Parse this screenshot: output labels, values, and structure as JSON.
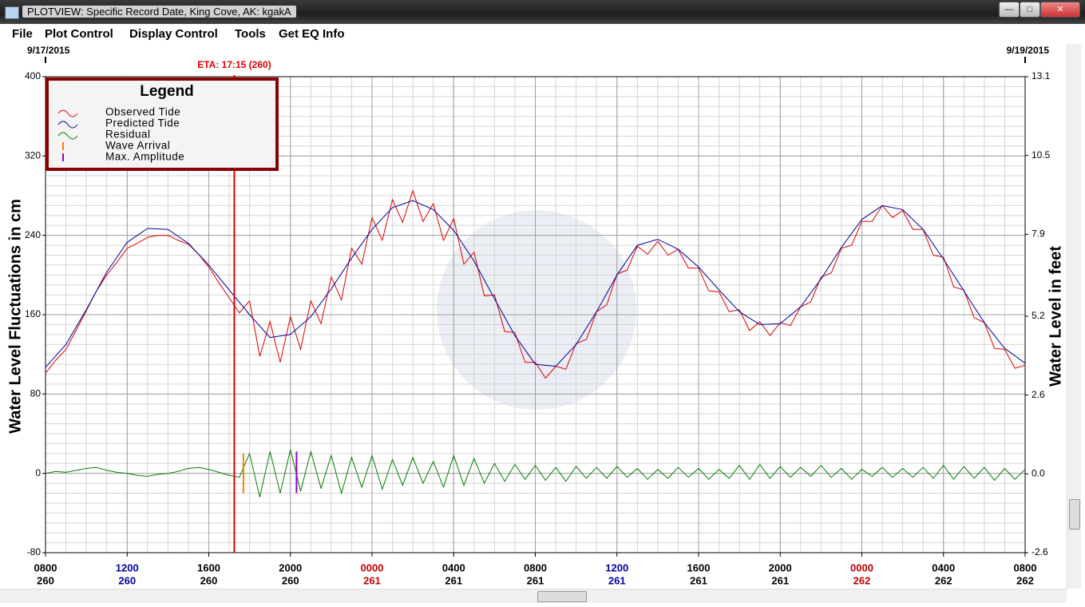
{
  "window": {
    "title": "PLOTVIEW: Specific Record Date, King Cove, AK: kgakA",
    "menu": [
      "File",
      "Plot Control",
      "Display Control",
      "Tools",
      "Get EQ Info"
    ]
  },
  "chart_data": {
    "type": "line",
    "y_label": "Water Level Fluctuations in cm",
    "y2_label": "Water Level in feet",
    "start_date": "9/17/2015",
    "end_date": "9/19/2015",
    "xlim": [
      0,
      48
    ],
    "xticks": [
      {
        "value": 0,
        "label": "0800",
        "day": "260",
        "color": "#000000"
      },
      {
        "value": 4,
        "label": "1200",
        "day": "260",
        "color": "#0000a0"
      },
      {
        "value": 8,
        "label": "1600",
        "day": "260",
        "color": "#000000"
      },
      {
        "value": 12,
        "label": "2000",
        "day": "260",
        "color": "#000000"
      },
      {
        "value": 16,
        "label": "0000",
        "day": "261",
        "color": "#c00000"
      },
      {
        "value": 20,
        "label": "0400",
        "day": "261",
        "color": "#000000"
      },
      {
        "value": 24,
        "label": "0800",
        "day": "261",
        "color": "#000000"
      },
      {
        "value": 28,
        "label": "1200",
        "day": "261",
        "color": "#0000a0"
      },
      {
        "value": 32,
        "label": "1600",
        "day": "261",
        "color": "#000000"
      },
      {
        "value": 36,
        "label": "2000",
        "day": "261",
        "color": "#000000"
      },
      {
        "value": 40,
        "label": "0000",
        "day": "262",
        "color": "#c00000"
      },
      {
        "value": 44,
        "label": "0400",
        "day": "262",
        "color": "#000000"
      },
      {
        "value": 48,
        "label": "0800",
        "day": "262",
        "color": "#000000"
      }
    ],
    "ylim": [
      -80,
      400
    ],
    "yticks": [
      -80,
      0,
      80,
      160,
      240,
      320,
      400
    ],
    "y2lim": [
      -2.6,
      13.1
    ],
    "y2ticks": [
      -2.6,
      {
        "value": 0,
        "label": "0.0"
      },
      2.6,
      5.2,
      7.9,
      10.5,
      13.1
    ],
    "grid": true,
    "minor_grid": {
      "x": 1,
      "y": 10
    },
    "legend": {
      "title": "Legend",
      "position": "upper left"
    },
    "eta": {
      "label": "ETA: 17:15 (260)",
      "x": 9.25,
      "color": "#e00000"
    },
    "series": [
      {
        "name": "Observed Tide",
        "color": "#e00000",
        "x": [
          0,
          0.5,
          1,
          1.5,
          2,
          2.5,
          3,
          3.5,
          4,
          4.5,
          5,
          5.5,
          6,
          6.5,
          7,
          7.5,
          8,
          8.5,
          9,
          9.5,
          10,
          10.5,
          11,
          11.5,
          12,
          12.5,
          13,
          13.5,
          14,
          14.5,
          15,
          15.5,
          16,
          16.5,
          17,
          17.5,
          18,
          18.5,
          19,
          19.5,
          20,
          20.5,
          21,
          21.5,
          22,
          22.5,
          23,
          23.5,
          24,
          24.5,
          25,
          25.5,
          26,
          26.5,
          27,
          27.5,
          28,
          28.5,
          29,
          29.5,
          30,
          30.5,
          31,
          31.5,
          32,
          32.5,
          33,
          33.5,
          34,
          34.5,
          35,
          35.5,
          36,
          36.5,
          37,
          37.5,
          38,
          38.5,
          39,
          39.5,
          40,
          40.5,
          41,
          41.5,
          42,
          42.5,
          43,
          43.5,
          44,
          44.5,
          45,
          45.5,
          46,
          46.5,
          47,
          47.5,
          48
        ],
        "values": [
          101,
          114,
          125,
          144,
          164,
          184,
          200,
          213,
          227,
          232,
          238,
          240,
          240,
          235,
          231,
          221,
          208,
          192,
          177,
          162,
          174,
          118,
          153,
          112,
          158,
          125,
          174,
          151,
          198,
          175,
          227,
          211,
          258,
          235,
          276,
          253,
          285,
          254,
          272,
          235,
          257,
          211,
          223,
          179,
          180,
          143,
          142,
          112,
          112,
          96,
          108,
          105,
          131,
          135,
          163,
          170,
          201,
          205,
          229,
          221,
          234,
          220,
          226,
          207,
          207,
          184,
          183,
          163,
          165,
          144,
          153,
          139,
          152,
          149,
          168,
          173,
          198,
          202,
          227,
          230,
          254,
          254,
          270,
          258,
          265,
          246,
          246,
          220,
          218,
          188,
          185,
          157,
          152,
          126,
          125,
          106,
          109
        ]
      },
      {
        "name": "Predicted Tide",
        "color": "#0000a0",
        "x": [
          0,
          1,
          2,
          3,
          4,
          5,
          6,
          7,
          8,
          9,
          10,
          11,
          12,
          13,
          14,
          15,
          16,
          17,
          18,
          19,
          20,
          21,
          22,
          23,
          24,
          25,
          26,
          27,
          28,
          29,
          30,
          31,
          32,
          33,
          34,
          35,
          36,
          37,
          38,
          39,
          40,
          41,
          42,
          43,
          44,
          45,
          46,
          47,
          48
        ],
        "values": [
          107,
          130,
          165,
          203,
          233,
          247,
          246,
          232,
          210,
          185,
          160,
          137,
          140,
          158,
          186,
          217,
          246,
          268,
          275,
          266,
          245,
          214,
          176,
          139,
          110,
          108,
          130,
          163,
          200,
          230,
          236,
          226,
          208,
          185,
          163,
          150,
          151,
          168,
          196,
          228,
          256,
          270,
          266,
          246,
          216,
          184,
          152,
          126,
          111
        ]
      },
      {
        "name": "Residual",
        "color": "#008000",
        "x": [
          0,
          0.5,
          1,
          1.5,
          2,
          2.5,
          3,
          3.5,
          4,
          4.5,
          5,
          5.5,
          6,
          6.5,
          7,
          7.5,
          8,
          8.5,
          9,
          9.5,
          10,
          10.5,
          11,
          11.5,
          12,
          12.5,
          13,
          13.5,
          14,
          14.5,
          15,
          15.5,
          16,
          16.5,
          17,
          17.5,
          18,
          18.5,
          19,
          19.5,
          20,
          20.5,
          21,
          21.5,
          22,
          22.5,
          23,
          23.5,
          24,
          24.5,
          25,
          25.5,
          26,
          26.5,
          27,
          27.5,
          28,
          28.5,
          29,
          29.5,
          30,
          30.5,
          31,
          31.5,
          32,
          32.5,
          33,
          33.5,
          34,
          34.5,
          35,
          35.5,
          36,
          36.5,
          37,
          37.5,
          38,
          38.5,
          39,
          39.5,
          40,
          40.5,
          41,
          41.5,
          42,
          42.5,
          43,
          43.5,
          44,
          44.5,
          45,
          45.5,
          46,
          46.5,
          47,
          47.5,
          48
        ],
        "values": [
          0,
          2,
          1,
          3,
          5,
          6,
          3,
          1,
          0,
          -2,
          -3,
          -1,
          0,
          2,
          5,
          6,
          4,
          1,
          -2,
          -4,
          20,
          -24,
          22,
          -20,
          24,
          -18,
          22,
          -15,
          18,
          -20,
          16,
          -14,
          18,
          -16,
          14,
          -12,
          16,
          -10,
          12,
          -14,
          18,
          -12,
          15,
          -10,
          10,
          -8,
          9,
          -6,
          8,
          -7,
          6,
          -8,
          7,
          -5,
          6,
          -5,
          7,
          -4,
          5,
          -6,
          4,
          -5,
          6,
          -4,
          5,
          -6,
          4,
          -5,
          8,
          -6,
          9,
          -5,
          7,
          -4,
          6,
          -3,
          8,
          -4,
          5,
          -6,
          4,
          -3,
          6,
          -4,
          5,
          -4,
          6,
          -5,
          8,
          -6,
          7,
          -5,
          6,
          -7,
          5,
          -6,
          4
        ]
      }
    ],
    "markers": [
      {
        "name": "Wave Arrival",
        "color": "#ff8000",
        "x": 9.7,
        "range": [
          -20,
          20
        ]
      },
      {
        "name": "Max. Amplitude",
        "color": "#9900cc",
        "x": 12.3,
        "range": [
          -20,
          22
        ]
      }
    ]
  }
}
